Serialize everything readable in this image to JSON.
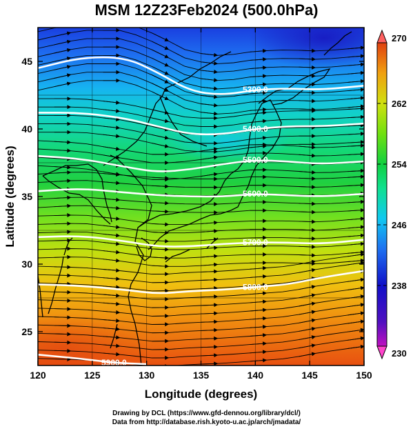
{
  "title": "MSM 12Z23Feb2024 (500.0hPa)",
  "x_axis": {
    "label": "Longitude (degrees)",
    "ticks": [
      "120",
      "125",
      "130",
      "135",
      "140",
      "145",
      "150"
    ],
    "range": [
      120,
      150
    ]
  },
  "y_axis": {
    "label": "Latitude  (degrees)",
    "ticks": [
      "25",
      "30",
      "35",
      "40",
      "45"
    ],
    "range": [
      22.5,
      47.5
    ]
  },
  "colorbar": {
    "ticks": [
      "270",
      "262",
      "254",
      "246",
      "238",
      "230"
    ],
    "range": [
      230,
      270
    ],
    "colors": [
      "#ff44cc",
      "#c010c0",
      "#1010c0",
      "#1a4ae8",
      "#1e90ff",
      "#10d0f0",
      "#10e090",
      "#10d040",
      "#60e010",
      "#c0e010",
      "#f0c010",
      "#f08010",
      "#e04010"
    ]
  },
  "contours": [
    {
      "label": "5300.0",
      "points": [
        [
          120,
          44.5
        ],
        [
          124,
          45.3
        ],
        [
          128,
          45.3
        ],
        [
          131,
          44.2
        ],
        [
          134,
          42.8
        ],
        [
          137,
          42.5
        ],
        [
          140,
          42.9
        ],
        [
          143,
          43.0
        ],
        [
          146,
          42.9
        ],
        [
          150,
          43.2
        ]
      ]
    },
    {
      "label": "5400.0",
      "points": [
        [
          120,
          41.2
        ],
        [
          124,
          41.2
        ],
        [
          128,
          40.8
        ],
        [
          131,
          40.2
        ],
        [
          134,
          39.6
        ],
        [
          137,
          39.6
        ],
        [
          140,
          40.0
        ],
        [
          143,
          40.2
        ],
        [
          146,
          40.2
        ],
        [
          150,
          40.4
        ]
      ]
    },
    {
      "label": "5500.0",
      "points": [
        [
          120,
          38.0
        ],
        [
          124,
          37.8
        ],
        [
          128,
          37.2
        ],
        [
          131,
          36.8
        ],
        [
          134,
          37.0
        ],
        [
          137,
          37.4
        ],
        [
          140,
          37.7
        ],
        [
          143,
          37.6
        ],
        [
          146,
          37.4
        ],
        [
          150,
          37.6
        ]
      ]
    },
    {
      "label": "5600.0",
      "points": [
        [
          120,
          35.4
        ],
        [
          124,
          35.6
        ],
        [
          128,
          35.3
        ],
        [
          131,
          35.1
        ],
        [
          134,
          35.0
        ],
        [
          137,
          35.0
        ],
        [
          140,
          35.2
        ],
        [
          143,
          35.1
        ],
        [
          146,
          35.0
        ],
        [
          150,
          35.2
        ]
      ]
    },
    {
      "label": "5700.0",
      "points": [
        [
          120,
          32.0
        ],
        [
          124,
          32.1
        ],
        [
          128,
          31.7
        ],
        [
          131,
          31.3
        ],
        [
          134,
          31.3
        ],
        [
          137,
          31.5
        ],
        [
          140,
          31.6
        ],
        [
          143,
          31.6
        ],
        [
          146,
          31.5
        ],
        [
          150,
          31.8
        ]
      ]
    },
    {
      "label": "5800.0",
      "points": [
        [
          120,
          28.5
        ],
        [
          124,
          28.4
        ],
        [
          128,
          28.1
        ],
        [
          131,
          27.8
        ],
        [
          134,
          28.0
        ],
        [
          137,
          28.1
        ],
        [
          140,
          28.3
        ],
        [
          143,
          28.5
        ],
        [
          146,
          29.0
        ],
        [
          150,
          29.5
        ]
      ]
    },
    {
      "label": "5900.0",
      "points": [
        [
          120,
          23.3
        ],
        [
          124,
          23.0
        ],
        [
          127,
          22.7
        ],
        [
          130,
          22.6
        ]
      ]
    }
  ],
  "credits": {
    "line1": "Drawing by DCL (https://www.gfd-dennou.org/library/dcl/)",
    "line2": "Data from http://database.rish.kyoto-u.ac.jp/arch/jmadata/"
  }
}
